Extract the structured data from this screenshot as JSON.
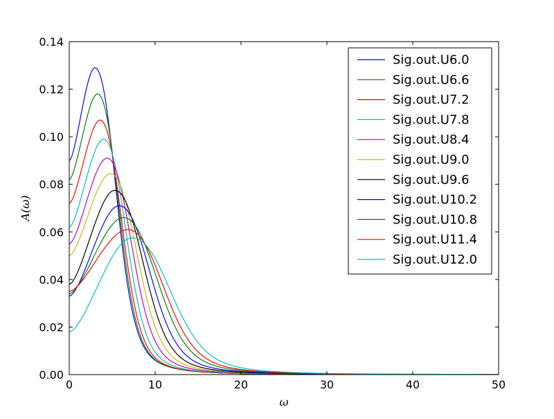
{
  "chart_data": {
    "type": "line",
    "title": "",
    "xlabel": "ω",
    "ylabel": "A(ω)",
    "xlim": [
      0,
      50
    ],
    "ylim": [
      0,
      0.14
    ],
    "xticks": [
      "0",
      "10",
      "20",
      "30",
      "40",
      "50"
    ],
    "yticks": [
      "0.00",
      "0.02",
      "0.04",
      "0.06",
      "0.08",
      "0.10",
      "0.12",
      "0.14"
    ],
    "grid": false,
    "legend_position": "top-right",
    "series": [
      {
        "name": "Sig.out.U6.0",
        "color": "#0000ff",
        "a0": 0.09,
        "peak_x": 3.0,
        "peak_y": 0.129,
        "wl": 2.1,
        "tail": 2.2
      },
      {
        "name": "Sig.out.U6.6",
        "color": "#008000",
        "a0": 0.082,
        "peak_x": 3.3,
        "peak_y": 0.118,
        "wl": 2.1,
        "tail": 2.4
      },
      {
        "name": "Sig.out.U7.2",
        "color": "#ff0000",
        "a0": 0.072,
        "peak_x": 3.6,
        "peak_y": 0.107,
        "wl": 2.15,
        "tail": 2.6
      },
      {
        "name": "Sig.out.U7.8",
        "color": "#00bfbf",
        "a0": 0.062,
        "peak_x": 4.0,
        "peak_y": 0.099,
        "wl": 2.25,
        "tail": 2.8
      },
      {
        "name": "Sig.out.U8.4",
        "color": "#bf00bf",
        "a0": 0.055,
        "peak_x": 4.4,
        "peak_y": 0.091,
        "wl": 2.45,
        "tail": 3.0
      },
      {
        "name": "Sig.out.U9.0",
        "color": "#bfbf00",
        "a0": 0.05,
        "peak_x": 4.8,
        "peak_y": 0.0845,
        "wl": 2.65,
        "tail": 3.2
      },
      {
        "name": "Sig.out.U9.6",
        "color": "#000000",
        "a0": 0.038,
        "peak_x": 5.3,
        "peak_y": 0.0775,
        "wl": 2.85,
        "tail": 3.4
      },
      {
        "name": "Sig.out.U10.2",
        "color": "#0000ff",
        "a0": 0.033,
        "peak_x": 5.8,
        "peak_y": 0.071,
        "wl": 3.1,
        "tail": 3.6
      },
      {
        "name": "Sig.out.U10.8",
        "color": "#008000",
        "a0": 0.034,
        "peak_x": 6.3,
        "peak_y": 0.066,
        "wl": 3.4,
        "tail": 3.8
      },
      {
        "name": "Sig.out.U11.4",
        "color": "#ff0000",
        "a0": 0.035,
        "peak_x": 6.8,
        "peak_y": 0.061,
        "wl": 3.6,
        "tail": 4.0
      },
      {
        "name": "Sig.out.U12.0",
        "color": "#00bfbf",
        "a0": 0.018,
        "peak_x": 7.3,
        "peak_y": 0.0575,
        "wl": 3.9,
        "tail": 4.2
      }
    ]
  }
}
